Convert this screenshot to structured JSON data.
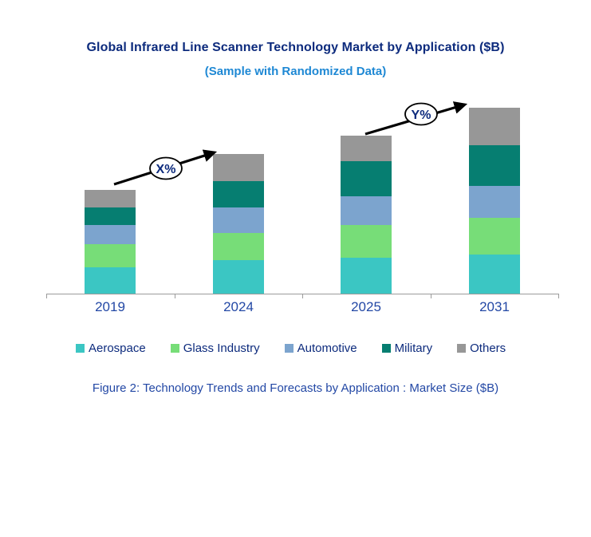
{
  "header": {
    "title": "Global Infrared Line Scanner Technology Market by Application ($B)",
    "subtitle": "(Sample with Randomized Data)"
  },
  "caption": "Figure 2: Technology Trends and Forecasts by Application : Market Size ($B)",
  "colors": {
    "background": "#FFFFFF",
    "title_text": "#0D2B7D",
    "subtitle_text": "#1E88D4",
    "axis_label_text": "#2348A5",
    "caption_text": "#2348A5",
    "legend_text": "#0D2B7D",
    "axis_line": "#9B9B9B",
    "annotation_text": "#0D2B7D",
    "annotation_outline": "#000000",
    "annotation_fill": "#FFFFFF"
  },
  "chart_data": {
    "type": "bar",
    "stacked": true,
    "grid": false,
    "legend_position": "bottom",
    "title": "Global Infrared Line Scanner Technology Market by Application ($B)",
    "subtitle": "(Sample with Randomized Data)",
    "xlabel": "",
    "ylabel": "",
    "y_axis_visible": false,
    "categories": [
      "2019",
      "2024",
      "2025",
      "2031"
    ],
    "series": [
      {
        "name": "Aerospace",
        "color": "#3BC6C3",
        "values": [
          33,
          42,
          45,
          49
        ]
      },
      {
        "name": "Glass Industry",
        "color": "#77DD78",
        "values": [
          29,
          34,
          41,
          46
        ]
      },
      {
        "name": "Automotive",
        "color": "#7CA4CE",
        "values": [
          24,
          32,
          36,
          40
        ]
      },
      {
        "name": "Military",
        "color": "#067E71",
        "values": [
          22,
          33,
          44,
          51
        ]
      },
      {
        "name": "Others",
        "color": "#979797",
        "values": [
          22,
          34,
          32,
          47
        ]
      }
    ],
    "totals": [
      130,
      175,
      198,
      232
    ],
    "annotations": [
      {
        "label": "X%",
        "from_category": "2019",
        "to_category": "2024"
      },
      {
        "label": "Y%",
        "from_category": "2025",
        "to_category": "2031"
      }
    ]
  }
}
